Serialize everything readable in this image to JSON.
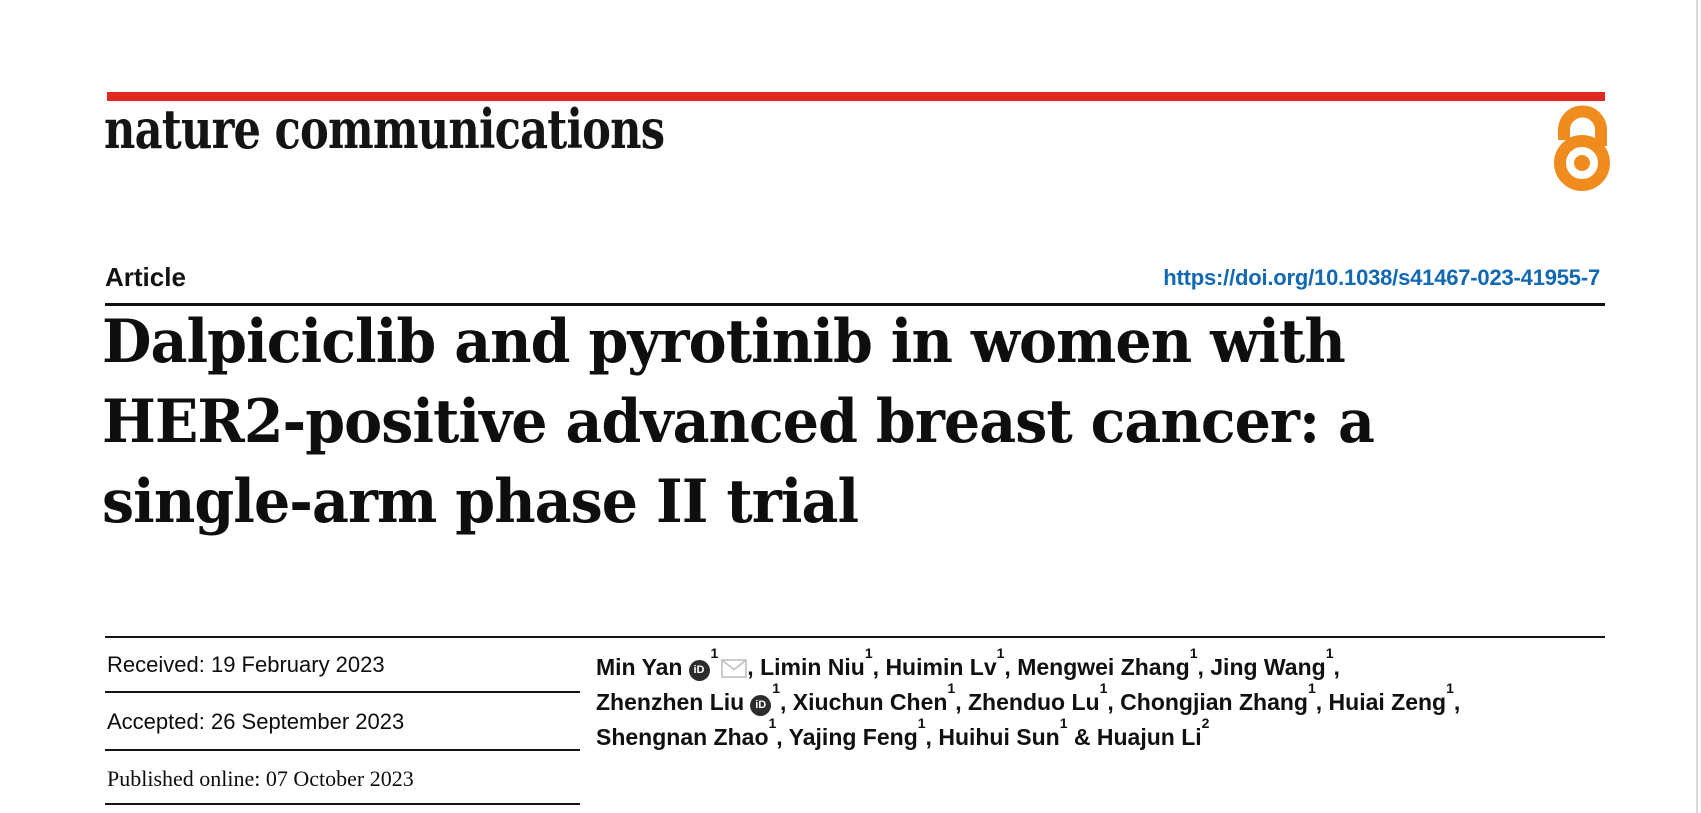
{
  "journal": {
    "name": "nature communications"
  },
  "header": {
    "article_label": "Article",
    "doi": "https://doi.org/10.1038/s41467-023-41955-7"
  },
  "title": {
    "lines": [
      "Dalpiciclib and pyrotinib in women with",
      "HER2-positive advanced breast cancer: a",
      "single-arm phase II trial"
    ]
  },
  "dates": [
    {
      "label": "Received:",
      "value": "19 February 2023"
    },
    {
      "label": "Accepted:",
      "value": "26 September 2023"
    },
    {
      "label": "Published online:",
      "value": "07 October 2023"
    }
  ],
  "authors": {
    "lines": [
      [
        {
          "sep": "",
          "name": "Min Yan",
          "orcid": true,
          "sup": "1",
          "email": true
        },
        {
          "sep": ", ",
          "name": "Limin Niu",
          "sup": "1"
        },
        {
          "sep": ", ",
          "name": "Huimin Lv",
          "sup": "1"
        },
        {
          "sep": ", ",
          "name": "Mengwei Zhang",
          "sup": "1"
        },
        {
          "sep": ", ",
          "name": "Jing Wang",
          "sup": "1",
          "trail": ","
        }
      ],
      [
        {
          "sep": "",
          "name": "Zhenzhen Liu",
          "orcid": true,
          "sup": "1"
        },
        {
          "sep": ", ",
          "name": "Xiuchun Chen",
          "sup": "1"
        },
        {
          "sep": ", ",
          "name": "Zhenduo Lu",
          "sup": "1"
        },
        {
          "sep": ", ",
          "name": "Chongjian Zhang",
          "sup": "1"
        },
        {
          "sep": ", ",
          "name": "Huiai Zeng",
          "sup": "1",
          "trail": ","
        }
      ],
      [
        {
          "sep": "",
          "name": "Shengnan Zhao",
          "sup": "1"
        },
        {
          "sep": ", ",
          "name": "Yajing Feng",
          "sup": "1"
        },
        {
          "sep": ", ",
          "name": "Huihui Sun",
          "sup": "1"
        },
        {
          "sep": " & ",
          "name": "Huajun Li",
          "sup": "2"
        }
      ]
    ]
  },
  "icons": {
    "open_access": "open-access-lock",
    "orcid_label": "iD",
    "email": "envelope"
  },
  "colors": {
    "accent_red": "#e2291f",
    "open_access_orange": "#f08c1e",
    "doi_blue": "#1268b2",
    "envelope_gray": "#bfbfbf",
    "orcid_black": "#2d2d2d",
    "rule_black": "#141414"
  }
}
